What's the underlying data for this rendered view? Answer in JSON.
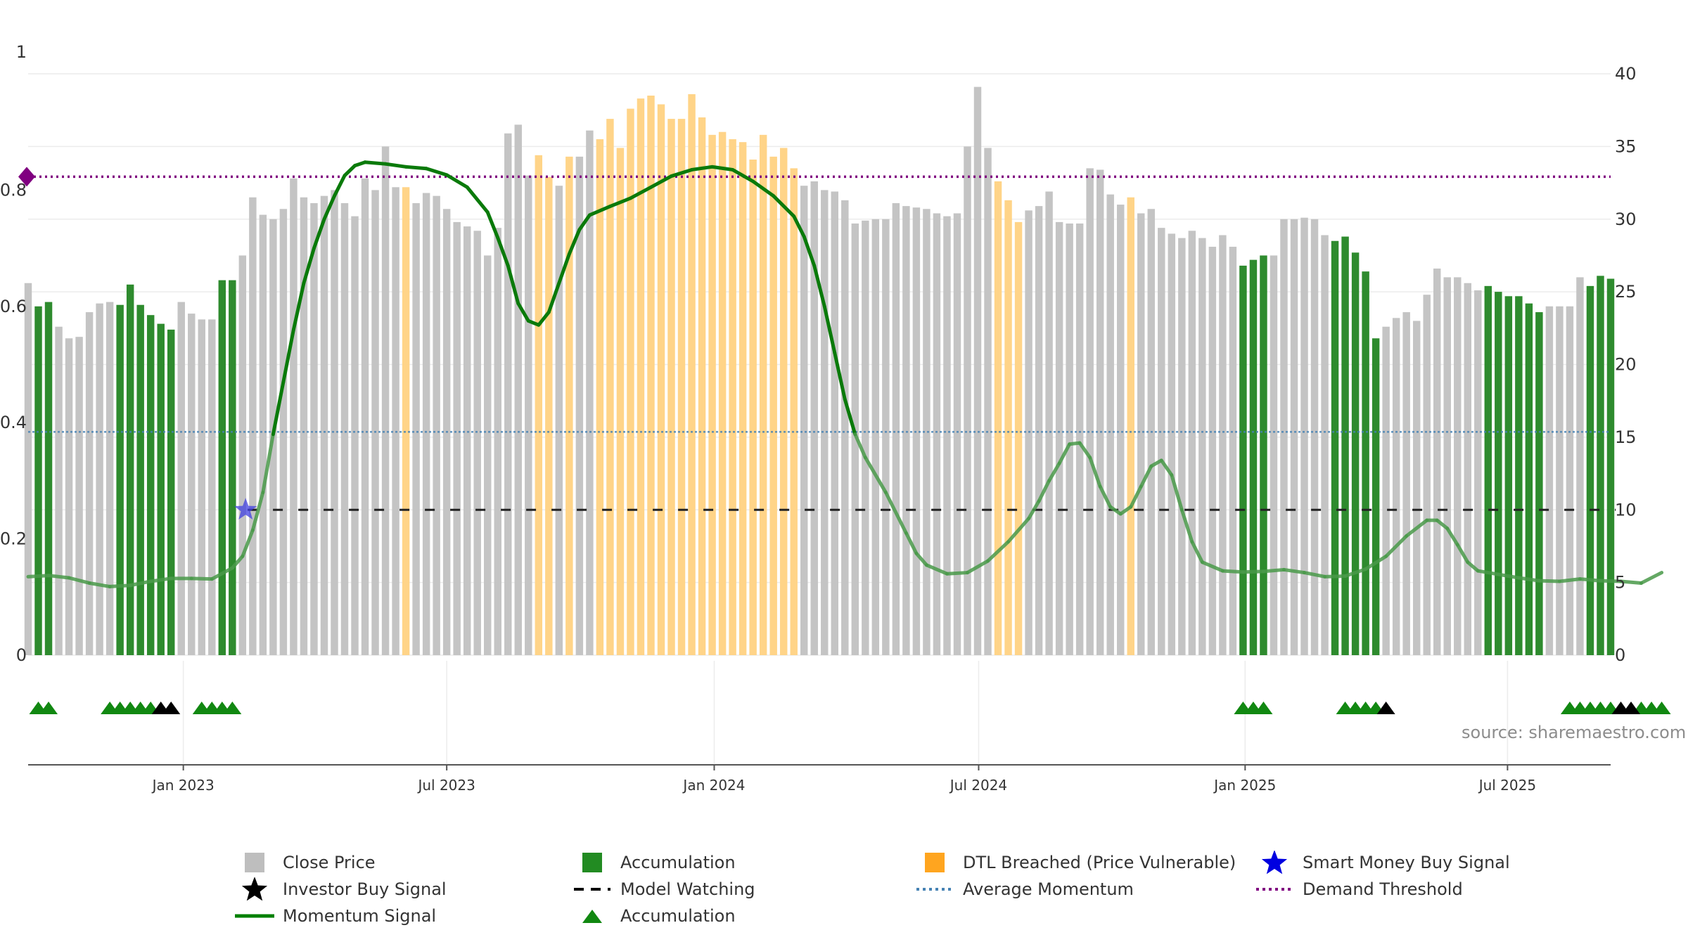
{
  "chart_data": {
    "type": "bar",
    "title": "",
    "source_note": "source: sharemaestro.com",
    "left_axis": {
      "range": [
        0,
        1
      ],
      "ticks": [
        "0",
        "0.2",
        "0.4",
        "0.6",
        "0.8",
        "1"
      ],
      "tick_values": [
        0,
        0.2,
        0.4,
        0.6,
        0.8,
        1
      ]
    },
    "right_axis": {
      "range": [
        0,
        40
      ],
      "ticks": [
        "0",
        "5",
        "10",
        "15",
        "20",
        "25",
        "30",
        "35",
        "40"
      ],
      "tick_values": [
        0,
        5,
        10,
        15,
        20,
        25,
        30,
        35,
        40
      ]
    },
    "x_axis": {
      "ticks": [
        {
          "label": "Jan 2023",
          "week": 15.2
        },
        {
          "label": "Jul 2023",
          "week": 41.0
        },
        {
          "label": "Jan 2024",
          "week": 67.2
        },
        {
          "label": "Jul 2024",
          "week": 93.1
        },
        {
          "label": "Jan 2025",
          "week": 119.2
        },
        {
          "label": "Jul 2025",
          "week": 144.9
        }
      ]
    },
    "series": [
      {
        "name": "Close Price",
        "axis": "right",
        "note": "weekly bars; color by category: g=Close Price (grey), a=Accumulation (green), o=DTL Breached (orange)",
        "values": [
          25.6,
          24.0,
          24.3,
          22.6,
          21.8,
          21.9,
          23.6,
          24.2,
          24.3,
          24.1,
          25.5,
          24.1,
          23.4,
          22.8,
          22.4,
          24.3,
          23.5,
          23.1,
          23.1,
          25.8,
          25.8,
          27.5,
          31.5,
          30.3,
          30.0,
          30.7,
          32.8,
          31.5,
          31.1,
          31.6,
          32.0,
          31.1,
          30.2,
          32.8,
          32.0,
          35.0,
          32.2,
          32.2,
          31.1,
          31.8,
          31.6,
          30.7,
          29.8,
          29.5,
          29.2,
          27.5,
          29.4,
          35.9,
          36.5,
          33.0,
          34.4,
          32.9,
          32.3,
          34.3,
          34.3,
          36.1,
          35.5,
          36.9,
          34.9,
          37.6,
          38.3,
          38.5,
          37.9,
          36.9,
          36.9,
          38.6,
          37.0,
          35.8,
          36.0,
          35.5,
          35.3,
          34.1,
          35.8,
          34.3,
          34.9,
          33.5,
          32.3,
          32.6,
          32.0,
          31.9,
          31.3,
          29.7,
          29.9,
          30.0,
          30.0,
          31.1,
          30.9,
          30.8,
          30.7,
          30.4,
          30.2,
          30.4,
          35.0,
          39.1,
          34.9,
          32.6,
          31.3,
          29.8,
          30.6,
          30.9,
          31.9,
          29.8,
          29.7,
          29.7,
          33.5,
          33.4,
          31.7,
          31.0,
          31.5,
          30.4,
          30.7,
          29.4,
          29.0,
          28.7,
          29.2,
          28.7,
          28.1,
          28.9,
          28.1,
          26.8,
          27.2,
          27.5,
          27.5,
          30.0,
          30.0,
          30.1,
          30.0,
          28.9,
          28.5,
          28.8,
          27.7,
          26.4,
          21.8,
          22.6,
          23.2,
          23.6,
          23.0,
          24.8,
          26.6,
          26.0,
          26.0,
          25.6,
          25.1,
          25.4,
          25.0,
          24.7,
          24.7,
          24.2,
          23.6,
          24.0,
          24.0,
          24.0,
          26.0,
          25.4,
          26.1,
          25.9
        ],
        "categories": "gaaggggggaaaaaaggggaaggggggggggggggggoggggggggggggoogoggoooooooooooooooooooogggggggggggggggggggoooggggggggggoggggggggggaaaggggggaaaaaggggggggggaaaaaaggggaaa"
      },
      {
        "name": "Momentum Signal",
        "axis": "left",
        "points": [
          [
            0,
            0.135
          ],
          [
            2,
            0.137
          ],
          [
            4,
            0.133
          ],
          [
            6,
            0.124
          ],
          [
            8,
            0.118
          ],
          [
            10,
            0.12
          ],
          [
            12,
            0.127
          ],
          [
            14,
            0.132
          ],
          [
            16,
            0.132
          ],
          [
            18,
            0.131
          ],
          [
            20,
            0.15
          ],
          [
            21,
            0.17
          ],
          [
            22,
            0.215
          ],
          [
            23,
            0.28
          ],
          [
            24,
            0.38
          ],
          [
            25,
            0.47
          ],
          [
            26,
            0.56
          ],
          [
            27,
            0.64
          ],
          [
            28,
            0.7
          ],
          [
            29,
            0.75
          ],
          [
            30,
            0.79
          ],
          [
            31,
            0.825
          ],
          [
            32,
            0.842
          ],
          [
            33,
            0.848
          ],
          [
            35,
            0.845
          ],
          [
            37,
            0.84
          ],
          [
            39,
            0.837
          ],
          [
            41,
            0.826
          ],
          [
            43,
            0.805
          ],
          [
            45,
            0.762
          ],
          [
            46,
            0.718
          ],
          [
            47,
            0.67
          ],
          [
            48,
            0.605
          ],
          [
            49,
            0.575
          ],
          [
            50,
            0.568
          ],
          [
            51,
            0.59
          ],
          [
            52,
            0.64
          ],
          [
            53,
            0.69
          ],
          [
            54,
            0.732
          ],
          [
            55,
            0.757
          ],
          [
            57,
            0.772
          ],
          [
            59,
            0.786
          ],
          [
            61,
            0.805
          ],
          [
            63,
            0.824
          ],
          [
            65,
            0.835
          ],
          [
            67,
            0.84
          ],
          [
            69,
            0.835
          ],
          [
            71,
            0.815
          ],
          [
            73,
            0.79
          ],
          [
            75,
            0.755
          ],
          [
            76,
            0.72
          ],
          [
            77,
            0.67
          ],
          [
            78,
            0.6
          ],
          [
            79,
            0.52
          ],
          [
            80,
            0.44
          ],
          [
            81,
            0.38
          ],
          [
            82,
            0.34
          ],
          [
            84,
            0.28
          ],
          [
            86,
            0.21
          ],
          [
            87,
            0.175
          ],
          [
            88,
            0.155
          ],
          [
            90,
            0.14
          ],
          [
            92,
            0.142
          ],
          [
            94,
            0.162
          ],
          [
            96,
            0.195
          ],
          [
            98,
            0.235
          ],
          [
            99,
            0.265
          ],
          [
            100,
            0.3
          ],
          [
            101,
            0.33
          ],
          [
            102,
            0.363
          ],
          [
            103,
            0.365
          ],
          [
            104,
            0.34
          ],
          [
            105,
            0.29
          ],
          [
            106,
            0.255
          ],
          [
            107,
            0.243
          ],
          [
            108,
            0.255
          ],
          [
            109,
            0.29
          ],
          [
            110,
            0.325
          ],
          [
            111,
            0.335
          ],
          [
            112,
            0.31
          ],
          [
            113,
            0.25
          ],
          [
            114,
            0.195
          ],
          [
            115,
            0.16
          ],
          [
            117,
            0.145
          ],
          [
            119,
            0.143
          ],
          [
            121,
            0.144
          ],
          [
            123,
            0.147
          ],
          [
            125,
            0.142
          ],
          [
            127,
            0.135
          ],
          [
            129,
            0.136
          ],
          [
            131,
            0.148
          ],
          [
            133,
            0.17
          ],
          [
            135,
            0.205
          ],
          [
            137,
            0.232
          ],
          [
            138,
            0.232
          ],
          [
            139,
            0.218
          ],
          [
            140,
            0.19
          ],
          [
            141,
            0.16
          ],
          [
            142,
            0.145
          ],
          [
            144,
            0.139
          ],
          [
            146,
            0.133
          ],
          [
            148,
            0.128
          ],
          [
            150,
            0.127
          ],
          [
            152,
            0.131
          ],
          [
            154,
            0.128
          ],
          [
            156,
            0.127
          ],
          [
            158,
            0.124
          ],
          [
            160,
            0.142
          ]
        ]
      },
      {
        "name": "Average Momentum",
        "axis": "left",
        "value": 0.384
      },
      {
        "name": "Demand Threshold",
        "axis": "left",
        "value": 0.823
      },
      {
        "name": "Model Watching",
        "axis": "left",
        "value": 0.25,
        "from_week": 21.5,
        "to_week": 155.5
      },
      {
        "name": "Smart Money Buy Signal",
        "axis": "left",
        "points": [
          [
            21.3,
            0.25
          ]
        ]
      },
      {
        "name": "Accumulation",
        "marker": "green-triangle",
        "weeks": [
          1,
          2,
          8,
          9,
          10,
          11,
          12,
          17,
          18,
          19,
          20,
          119,
          120,
          121,
          129,
          130,
          131,
          132,
          151,
          152,
          153,
          154,
          155,
          158,
          159,
          160
        ]
      },
      {
        "name": "Investor Buy Signal",
        "marker": "black-triangle",
        "weeks": [
          13,
          14,
          133,
          156,
          157
        ]
      }
    ]
  },
  "legend": [
    {
      "label": "Close Price",
      "color": "#bebebe",
      "symbol": "square"
    },
    {
      "label": "Accumulation",
      "color": "#228b22",
      "symbol": "square"
    },
    {
      "label": "DTL Breached (Price Vulnerable)",
      "color": "#ffa51f",
      "symbol": "square"
    },
    {
      "label": "Smart Money Buy Signal",
      "color": "#0000e0",
      "symbol": "star"
    },
    {
      "label": "Investor Buy Signal",
      "color": "#000000",
      "symbol": "star"
    },
    {
      "label": "Model Watching",
      "color": "#000000",
      "symbol": "dash"
    },
    {
      "label": "Average Momentum",
      "color": "#4682b4",
      "symbol": "dot"
    },
    {
      "label": "Demand Threshold",
      "color": "#800080",
      "symbol": "dot"
    },
    {
      "label": "Momentum Signal",
      "color": "#008000",
      "symbol": "line"
    },
    {
      "label": "Accumulation",
      "color": "#118811",
      "symbol": "triangle"
    }
  ],
  "colors": {
    "close_price": "#c4c4c4",
    "accumulation": "#2e8b2e",
    "dtl": "#ffd488",
    "momentum_strong": "#0a7a0a",
    "momentum_weak": "#4a9a4a",
    "avg_momentum": "#4682b4",
    "demand_threshold": "#800080",
    "model_watching": "#222222",
    "smart_money": "#4040e0",
    "grid": "#ececec",
    "axis_text": "#333333"
  }
}
